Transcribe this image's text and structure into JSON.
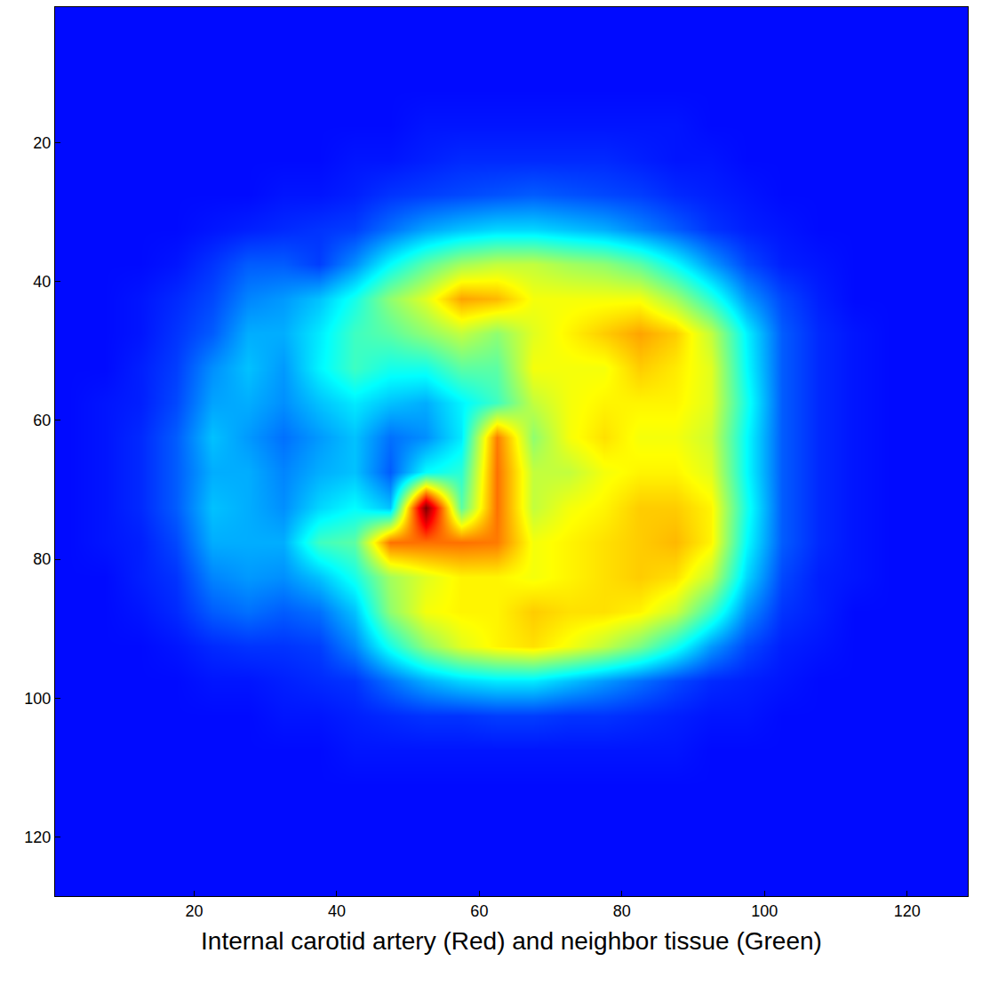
{
  "chart_data": {
    "type": "heatmap",
    "xlabel": "Internal carotid artery (Red) and neighbor tissue (Green)",
    "xlim": [
      0.5,
      128.5
    ],
    "xticks": [
      20,
      40,
      60,
      80,
      100,
      120
    ],
    "ylim": [
      128.5,
      0.5
    ],
    "yticks": [
      20,
      40,
      60,
      80,
      100,
      120
    ],
    "x": [
      2.5,
      7.5,
      12.5,
      17.5,
      22.5,
      27.5,
      32.5,
      37.5,
      42.5,
      47.5,
      52.5,
      57.5,
      62.5,
      67.5,
      72.5,
      77.5,
      82.5,
      87.5,
      92.5,
      97.5,
      102.5,
      107.5,
      112.5,
      117.5,
      122.5,
      127.5
    ],
    "y": [
      2.5,
      7.5,
      12.5,
      17.5,
      22.5,
      27.5,
      32.5,
      37.5,
      42.5,
      47.5,
      52.5,
      57.5,
      62.5,
      67.5,
      72.5,
      77.5,
      82.5,
      87.5,
      92.5,
      97.5,
      102.5,
      107.5,
      112.5,
      117.5,
      122.5,
      127.5
    ],
    "clim": [
      0,
      1
    ],
    "z": [
      [
        0.12,
        0.12,
        0.12,
        0.12,
        0.12,
        0.12,
        0.12,
        0.12,
        0.12,
        0.12,
        0.12,
        0.12,
        0.12,
        0.12,
        0.12,
        0.12,
        0.12,
        0.12,
        0.12,
        0.12,
        0.12,
        0.12,
        0.12,
        0.12,
        0.12,
        0.12
      ],
      [
        0.12,
        0.12,
        0.12,
        0.12,
        0.12,
        0.12,
        0.12,
        0.12,
        0.12,
        0.12,
        0.12,
        0.12,
        0.12,
        0.12,
        0.12,
        0.12,
        0.12,
        0.12,
        0.12,
        0.12,
        0.12,
        0.12,
        0.12,
        0.12,
        0.12,
        0.12
      ],
      [
        0.12,
        0.12,
        0.12,
        0.12,
        0.12,
        0.12,
        0.12,
        0.12,
        0.12,
        0.12,
        0.12,
        0.12,
        0.12,
        0.12,
        0.12,
        0.12,
        0.12,
        0.12,
        0.12,
        0.12,
        0.12,
        0.12,
        0.12,
        0.12,
        0.12,
        0.12
      ],
      [
        0.12,
        0.12,
        0.12,
        0.12,
        0.12,
        0.12,
        0.12,
        0.12,
        0.12,
        0.12,
        0.13,
        0.13,
        0.13,
        0.13,
        0.13,
        0.13,
        0.13,
        0.13,
        0.12,
        0.12,
        0.12,
        0.12,
        0.12,
        0.12,
        0.12,
        0.12
      ],
      [
        0.12,
        0.12,
        0.12,
        0.12,
        0.12,
        0.12,
        0.12,
        0.12,
        0.13,
        0.13,
        0.14,
        0.15,
        0.15,
        0.15,
        0.15,
        0.15,
        0.14,
        0.13,
        0.13,
        0.12,
        0.12,
        0.12,
        0.12,
        0.12,
        0.12,
        0.12
      ],
      [
        0.12,
        0.12,
        0.12,
        0.12,
        0.12,
        0.12,
        0.13,
        0.13,
        0.14,
        0.16,
        0.17,
        0.18,
        0.19,
        0.2,
        0.19,
        0.18,
        0.17,
        0.15,
        0.14,
        0.13,
        0.12,
        0.12,
        0.12,
        0.12,
        0.12,
        0.12
      ],
      [
        0.12,
        0.12,
        0.12,
        0.12,
        0.13,
        0.14,
        0.15,
        0.16,
        0.17,
        0.22,
        0.27,
        0.3,
        0.32,
        0.32,
        0.3,
        0.28,
        0.24,
        0.2,
        0.16,
        0.14,
        0.13,
        0.12,
        0.12,
        0.12,
        0.12,
        0.12
      ],
      [
        0.12,
        0.12,
        0.12,
        0.13,
        0.16,
        0.2,
        0.2,
        0.17,
        0.25,
        0.36,
        0.45,
        0.52,
        0.55,
        0.55,
        0.52,
        0.5,
        0.45,
        0.36,
        0.26,
        0.18,
        0.14,
        0.13,
        0.12,
        0.12,
        0.12,
        0.12
      ],
      [
        0.12,
        0.12,
        0.13,
        0.15,
        0.18,
        0.24,
        0.26,
        0.3,
        0.38,
        0.5,
        0.58,
        0.7,
        0.68,
        0.6,
        0.6,
        0.6,
        0.6,
        0.52,
        0.4,
        0.26,
        0.18,
        0.14,
        0.12,
        0.12,
        0.12,
        0.12
      ],
      [
        0.12,
        0.12,
        0.13,
        0.16,
        0.2,
        0.28,
        0.28,
        0.34,
        0.42,
        0.45,
        0.5,
        0.55,
        0.5,
        0.58,
        0.62,
        0.66,
        0.7,
        0.66,
        0.55,
        0.35,
        0.2,
        0.15,
        0.13,
        0.12,
        0.12,
        0.12
      ],
      [
        0.12,
        0.12,
        0.14,
        0.17,
        0.25,
        0.3,
        0.26,
        0.35,
        0.42,
        0.38,
        0.38,
        0.45,
        0.45,
        0.6,
        0.6,
        0.6,
        0.66,
        0.63,
        0.58,
        0.36,
        0.2,
        0.15,
        0.13,
        0.12,
        0.12,
        0.12
      ],
      [
        0.12,
        0.13,
        0.14,
        0.18,
        0.27,
        0.28,
        0.25,
        0.3,
        0.34,
        0.3,
        0.28,
        0.35,
        0.42,
        0.55,
        0.6,
        0.62,
        0.62,
        0.62,
        0.58,
        0.38,
        0.2,
        0.15,
        0.13,
        0.12,
        0.12,
        0.12
      ],
      [
        0.12,
        0.13,
        0.15,
        0.2,
        0.3,
        0.26,
        0.22,
        0.26,
        0.3,
        0.22,
        0.25,
        0.34,
        0.74,
        0.5,
        0.6,
        0.64,
        0.6,
        0.6,
        0.56,
        0.36,
        0.2,
        0.15,
        0.13,
        0.12,
        0.12,
        0.12
      ],
      [
        0.12,
        0.13,
        0.15,
        0.2,
        0.28,
        0.28,
        0.24,
        0.28,
        0.3,
        0.2,
        0.36,
        0.4,
        0.75,
        0.55,
        0.55,
        0.6,
        0.62,
        0.62,
        0.58,
        0.36,
        0.2,
        0.15,
        0.13,
        0.12,
        0.12,
        0.12
      ],
      [
        0.12,
        0.13,
        0.15,
        0.2,
        0.3,
        0.28,
        0.25,
        0.32,
        0.36,
        0.3,
        1.0,
        0.45,
        0.75,
        0.55,
        0.6,
        0.62,
        0.66,
        0.66,
        0.62,
        0.38,
        0.2,
        0.15,
        0.13,
        0.12,
        0.12,
        0.12
      ],
      [
        0.12,
        0.13,
        0.14,
        0.18,
        0.28,
        0.28,
        0.28,
        0.42,
        0.45,
        0.75,
        0.75,
        0.75,
        0.74,
        0.6,
        0.62,
        0.64,
        0.66,
        0.68,
        0.62,
        0.36,
        0.2,
        0.15,
        0.13,
        0.12,
        0.12,
        0.12
      ],
      [
        0.12,
        0.12,
        0.14,
        0.16,
        0.24,
        0.26,
        0.25,
        0.3,
        0.38,
        0.52,
        0.58,
        0.62,
        0.62,
        0.6,
        0.62,
        0.64,
        0.66,
        0.64,
        0.55,
        0.32,
        0.18,
        0.14,
        0.13,
        0.12,
        0.12,
        0.12
      ],
      [
        0.12,
        0.12,
        0.13,
        0.15,
        0.2,
        0.22,
        0.2,
        0.22,
        0.3,
        0.5,
        0.6,
        0.62,
        0.62,
        0.66,
        0.64,
        0.64,
        0.62,
        0.56,
        0.42,
        0.25,
        0.16,
        0.14,
        0.12,
        0.12,
        0.12,
        0.12
      ],
      [
        0.12,
        0.12,
        0.12,
        0.13,
        0.15,
        0.16,
        0.16,
        0.17,
        0.24,
        0.38,
        0.5,
        0.58,
        0.62,
        0.64,
        0.6,
        0.55,
        0.48,
        0.38,
        0.26,
        0.18,
        0.14,
        0.13,
        0.12,
        0.12,
        0.12,
        0.12
      ],
      [
        0.12,
        0.12,
        0.12,
        0.12,
        0.13,
        0.13,
        0.14,
        0.15,
        0.16,
        0.22,
        0.28,
        0.32,
        0.34,
        0.34,
        0.3,
        0.26,
        0.22,
        0.18,
        0.15,
        0.14,
        0.13,
        0.12,
        0.12,
        0.12,
        0.12,
        0.12
      ],
      [
        0.12,
        0.12,
        0.12,
        0.12,
        0.12,
        0.12,
        0.13,
        0.13,
        0.14,
        0.15,
        0.16,
        0.16,
        0.17,
        0.17,
        0.16,
        0.16,
        0.15,
        0.14,
        0.13,
        0.13,
        0.12,
        0.12,
        0.12,
        0.12,
        0.12,
        0.12
      ],
      [
        0.12,
        0.12,
        0.12,
        0.12,
        0.12,
        0.12,
        0.12,
        0.12,
        0.13,
        0.13,
        0.13,
        0.13,
        0.13,
        0.13,
        0.13,
        0.13,
        0.13,
        0.13,
        0.12,
        0.12,
        0.12,
        0.12,
        0.12,
        0.12,
        0.12,
        0.12
      ],
      [
        0.12,
        0.12,
        0.12,
        0.12,
        0.12,
        0.12,
        0.12,
        0.12,
        0.12,
        0.12,
        0.12,
        0.12,
        0.12,
        0.12,
        0.12,
        0.12,
        0.12,
        0.12,
        0.12,
        0.12,
        0.12,
        0.12,
        0.12,
        0.12,
        0.12,
        0.12
      ],
      [
        0.12,
        0.12,
        0.12,
        0.12,
        0.12,
        0.12,
        0.12,
        0.12,
        0.12,
        0.12,
        0.12,
        0.12,
        0.12,
        0.12,
        0.12,
        0.12,
        0.12,
        0.12,
        0.12,
        0.12,
        0.12,
        0.12,
        0.12,
        0.12,
        0.12,
        0.12
      ],
      [
        0.12,
        0.12,
        0.12,
        0.12,
        0.12,
        0.12,
        0.12,
        0.12,
        0.12,
        0.12,
        0.12,
        0.12,
        0.12,
        0.12,
        0.12,
        0.12,
        0.12,
        0.12,
        0.12,
        0.12,
        0.12,
        0.12,
        0.12,
        0.12,
        0.12,
        0.12
      ],
      [
        0.12,
        0.12,
        0.12,
        0.12,
        0.12,
        0.12,
        0.12,
        0.12,
        0.12,
        0.12,
        0.12,
        0.12,
        0.12,
        0.12,
        0.12,
        0.12,
        0.12,
        0.12,
        0.12,
        0.12,
        0.12,
        0.12,
        0.12,
        0.12,
        0.12,
        0.12
      ]
    ]
  }
}
